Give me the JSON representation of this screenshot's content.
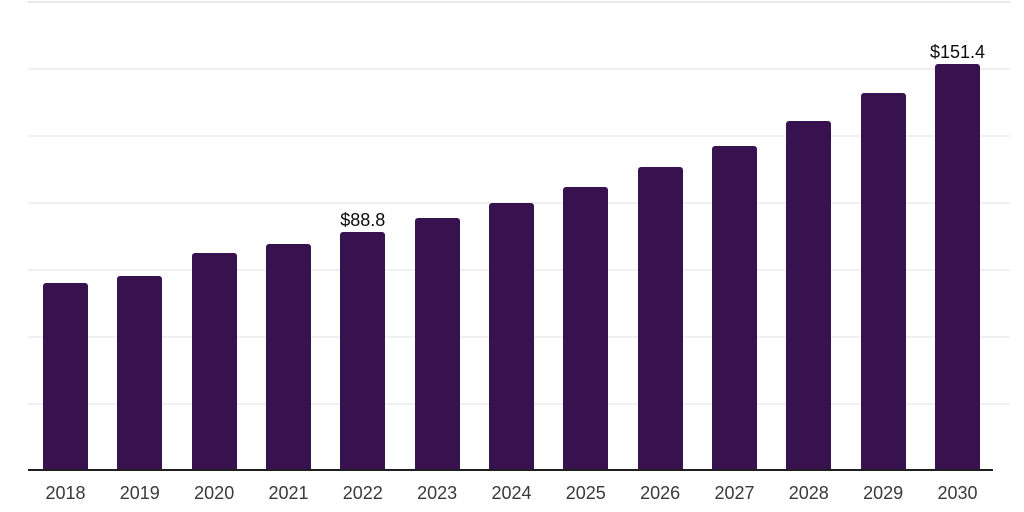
{
  "chart_data": {
    "type": "bar",
    "title": "",
    "xlabel": "",
    "ylabel": "",
    "categories": [
      "2018",
      "2019",
      "2020",
      "2021",
      "2022",
      "2023",
      "2024",
      "2025",
      "2026",
      "2027",
      "2028",
      "2029",
      "2030"
    ],
    "values": [
      69.7,
      72.2,
      80.9,
      84.3,
      88.8,
      93.9,
      99.5,
      105.7,
      112.9,
      121.0,
      130.3,
      140.5,
      151.4
    ],
    "data_labels": [
      {
        "category": "2022",
        "text": "$88.8"
      },
      {
        "category": "2030",
        "text": "$151.4"
      }
    ],
    "ylim": [
      0,
      175
    ],
    "gridline_values": [
      25,
      50,
      75,
      100,
      125,
      150,
      175
    ],
    "grid_on": true,
    "legend_position": "none",
    "colors": {
      "bar": "#37124e",
      "gridline": "#f0f0f2",
      "top_gridline": "#e8e8eb",
      "axis": "#1f1f1f",
      "tick_label": "#3a3a3a",
      "data_label": "#0b0b0b",
      "background": "#ffffff"
    }
  }
}
